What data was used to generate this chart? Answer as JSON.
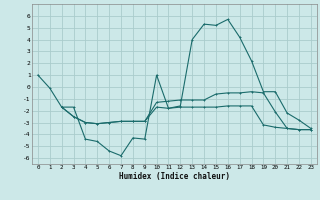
{
  "xlabel": "Humidex (Indice chaleur)",
  "bg_color": "#cce8e8",
  "grid_color": "#aacccc",
  "line_color": "#1a6b6b",
  "xlim": [
    -0.5,
    23.5
  ],
  "ylim": [
    -6.5,
    7.0
  ],
  "xticks": [
    0,
    1,
    2,
    3,
    4,
    5,
    6,
    7,
    8,
    9,
    10,
    11,
    12,
    13,
    14,
    15,
    16,
    17,
    18,
    19,
    20,
    21,
    22,
    23
  ],
  "yticks": [
    -6,
    -5,
    -4,
    -3,
    -2,
    -1,
    0,
    1,
    2,
    3,
    4,
    5,
    6
  ],
  "line1_x": [
    0,
    1,
    2,
    3,
    4,
    5,
    6,
    7,
    8,
    9,
    10,
    11,
    12,
    13,
    14,
    15,
    16,
    17,
    18,
    19,
    20,
    21,
    22,
    23
  ],
  "line1_y": [
    1.0,
    -0.1,
    -1.7,
    -1.7,
    -4.4,
    -4.6,
    -5.4,
    -5.8,
    -4.3,
    -4.4,
    1.0,
    -1.8,
    -1.6,
    4.0,
    5.3,
    5.2,
    5.7,
    4.2,
    2.2,
    -0.4,
    -0.4,
    -2.2,
    -2.8,
    -3.5
  ],
  "line2_x": [
    2,
    3,
    4,
    5,
    6,
    7,
    8,
    9,
    10,
    11,
    12,
    13,
    14,
    15,
    16,
    17,
    18,
    19,
    20,
    21,
    22,
    23
  ],
  "line2_y": [
    -1.7,
    -2.5,
    -3.0,
    -3.1,
    -3.0,
    -2.9,
    -2.9,
    -2.9,
    -1.7,
    -1.8,
    -1.7,
    -1.7,
    -1.7,
    -1.7,
    -1.6,
    -1.6,
    -1.6,
    -3.2,
    -3.4,
    -3.5,
    -3.6,
    -3.6
  ],
  "line3_x": [
    2,
    3,
    4,
    5,
    6,
    7,
    8,
    9,
    10,
    11,
    12,
    13,
    14,
    15,
    16,
    17,
    18,
    19,
    20,
    21,
    22,
    23
  ],
  "line3_y": [
    -1.7,
    -2.5,
    -3.0,
    -3.1,
    -3.0,
    -2.9,
    -2.9,
    -2.9,
    -1.3,
    -1.2,
    -1.1,
    -1.1,
    -1.1,
    -0.6,
    -0.5,
    -0.5,
    -0.4,
    -0.5,
    -2.1,
    -3.5,
    -3.6,
    -3.6
  ]
}
